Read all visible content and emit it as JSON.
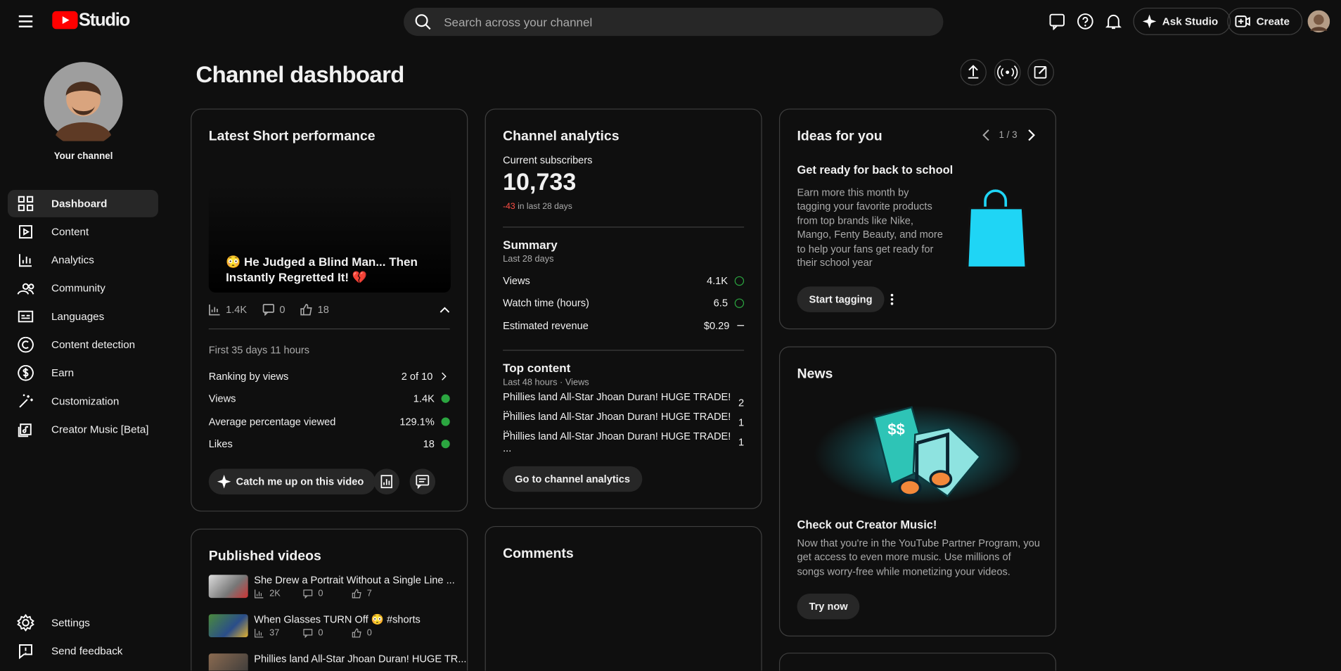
{
  "header": {
    "logo": "Studio",
    "search_placeholder": "Search across your channel",
    "ask_studio": "Ask Studio",
    "create": "Create"
  },
  "sidebar": {
    "channel_label": "Your channel",
    "nav": [
      "Dashboard",
      "Content",
      "Analytics",
      "Community",
      "Languages",
      "Content detection",
      "Earn",
      "Customization",
      "Creator Music [Beta]"
    ],
    "footer": [
      "Settings",
      "Send feedback"
    ]
  },
  "page": {
    "title": "Channel dashboard"
  },
  "latest_short": {
    "title": "Latest Short performance",
    "video_title": "😳 He Judged a Blind Man... Then Instantly Regretted It! 💔",
    "views": "1.4K",
    "comments": "0",
    "likes": "18",
    "period": "First 35 days 11 hours",
    "metrics": [
      {
        "label": "Ranking by views",
        "value": "2 of 10"
      },
      {
        "label": "Views",
        "value": "1.4K"
      },
      {
        "label": "Average percentage viewed",
        "value": "129.1%"
      },
      {
        "label": "Likes",
        "value": "18"
      }
    ],
    "button": "Catch me up on this video"
  },
  "channel_analytics": {
    "title": "Channel analytics",
    "subscribers_label": "Current subscribers",
    "subscribers": "10,733",
    "change": "-43",
    "change_period": "in last 28 days",
    "summary": {
      "title": "Summary",
      "period": "Last 28 days",
      "rows": [
        {
          "label": "Views",
          "value": "4.1K"
        },
        {
          "label": "Watch time (hours)",
          "value": "6.5"
        },
        {
          "label": "Estimated revenue",
          "value": "$0.29"
        }
      ]
    },
    "top_content": {
      "title": "Top content",
      "period": "Last 48 hours · Views",
      "rows": [
        {
          "title": "Phillies land All-Star Jhoan Duran! HUGE TRADE! ...",
          "views": "2"
        },
        {
          "title": "Phillies land All-Star Jhoan Duran! HUGE TRADE! ...",
          "views": "1"
        },
        {
          "title": "Phillies land All-Star Jhoan Duran! HUGE TRADE! ...",
          "views": "1"
        }
      ]
    },
    "button": "Go to channel analytics"
  },
  "ideas": {
    "title": "Ideas for you",
    "pager": "1 / 3",
    "heading": "Get ready for back to school",
    "body": "Earn more this month by tagging your favorite products from top brands like Nike, Mango, Fenty Beauty, and more to help your fans get ready for their school year",
    "button": "Start tagging"
  },
  "news": {
    "title": "News",
    "heading": "Check out Creator Music!",
    "body": "Now that you're in the YouTube Partner Program, you get access to even more music. Use millions of songs worry-free while monetizing your videos.",
    "button": "Try now"
  },
  "published_videos": {
    "title": "Published videos",
    "items": [
      {
        "title": "She Drew a Portrait Without a Single Line ...",
        "views": "2K",
        "comments": "0",
        "likes": "7"
      },
      {
        "title": "When Glasses TURN Off 😳  #shorts",
        "views": "37",
        "comments": "0",
        "likes": "0"
      },
      {
        "title": "Phillies land All-Star Jhoan Duran! HUGE TR..."
      }
    ]
  },
  "comments": {
    "title": "Comments"
  }
}
